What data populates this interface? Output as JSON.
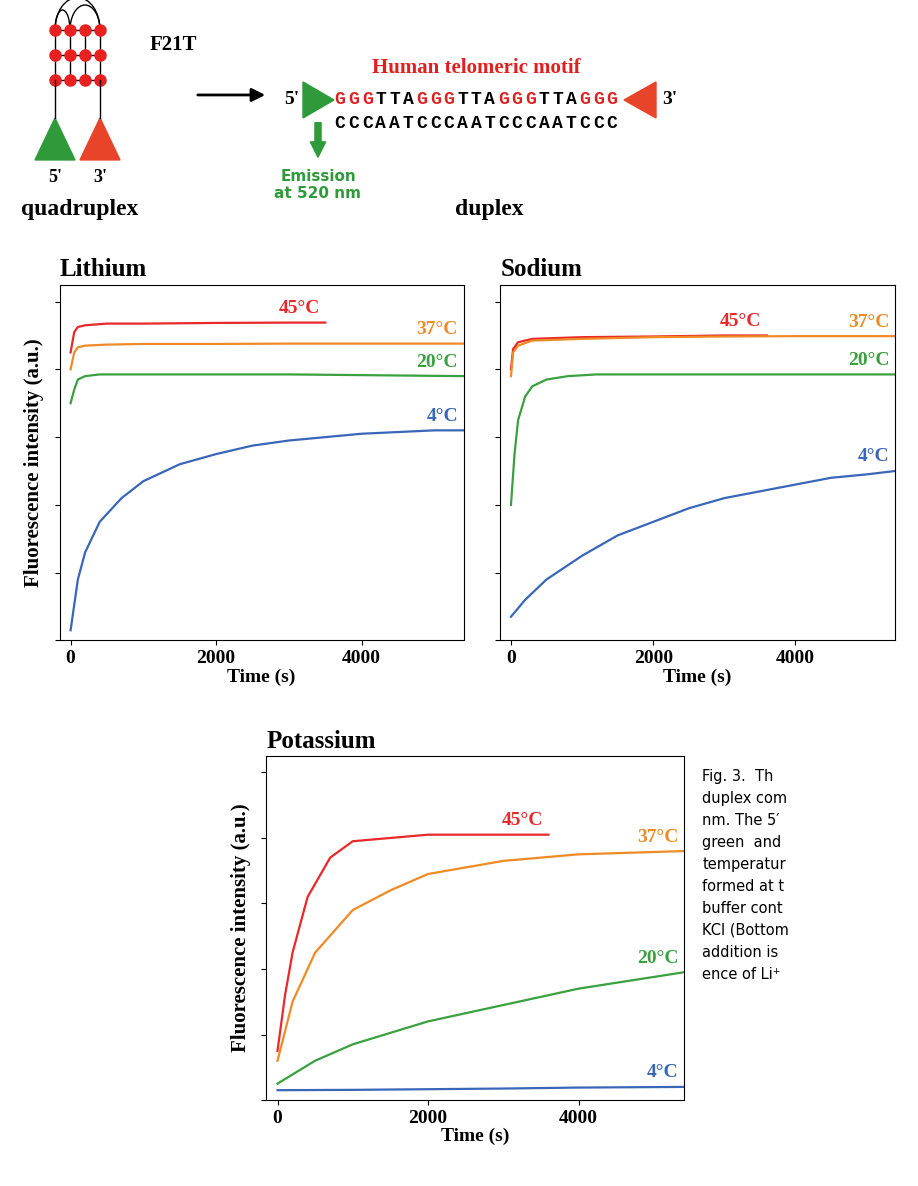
{
  "schematic": {
    "quadruplex": {
      "name": "F21T",
      "label": "quadruplex",
      "five_prime": "5'",
      "three_prime": "3'"
    },
    "duplex": {
      "motif_title": "Human telomeric motif",
      "top_strand": "GGGTTAGGGTTAGGGTTAGGG",
      "bottom_strand": "CCCAATCCCAATCCCAATCCC",
      "five_prime": "5'",
      "three_prime": "3'",
      "label": "duplex",
      "emission": "Emission\nat 520 nm"
    }
  },
  "chart_data": [
    {
      "type": "line",
      "title": "Lithium",
      "xlabel": "Time (s)",
      "ylabel": "Fluorescence intensity (a.u.)",
      "xlim": [
        -150,
        5400
      ],
      "ylim": [
        0,
        105
      ],
      "xticks": [
        0,
        2000,
        4000
      ],
      "yticks": [
        0,
        20,
        40,
        60,
        80,
        100
      ],
      "tick_labels": "x",
      "series": [
        {
          "name": "45°C",
          "color": "#e8292a",
          "x": [
            0,
            50,
            100,
            200,
            500,
            1000,
            2000,
            3000,
            3500
          ],
          "values": [
            85,
            91,
            92.5,
            93,
            93.5,
            93.5,
            93.7,
            93.8,
            93.8
          ]
        },
        {
          "name": "37°C",
          "color": "#f08a24",
          "x": [
            0,
            50,
            100,
            200,
            500,
            1000,
            2000,
            3000,
            4000,
            5400
          ],
          "values": [
            80,
            85,
            86.5,
            87,
            87.3,
            87.5,
            87.5,
            87.6,
            87.6,
            87.6
          ]
        },
        {
          "name": "20°C",
          "color": "#3aa040",
          "x": [
            0,
            50,
            100,
            200,
            400,
            1000,
            2000,
            3000,
            4000,
            5400
          ],
          "values": [
            70,
            74,
            77,
            78,
            78.5,
            78.5,
            78.5,
            78.5,
            78.3,
            78
          ]
        },
        {
          "name": "4°C",
          "color": "#3a66b8",
          "x": [
            0,
            100,
            200,
            400,
            700,
            1000,
            1500,
            2000,
            2500,
            3000,
            3500,
            4000,
            4500,
            5000,
            5400
          ],
          "values": [
            3,
            18,
            26,
            35,
            42,
            47,
            52,
            55,
            57.5,
            59,
            60,
            61,
            61.5,
            62,
            62
          ]
        }
      ]
    },
    {
      "type": "line",
      "title": "Sodium",
      "xlabel": "Time (s)",
      "xlim": [
        -150,
        5400
      ],
      "ylim": [
        0,
        105
      ],
      "xticks": [
        0,
        2000,
        4000
      ],
      "yticks": [
        0,
        20,
        40,
        60,
        80,
        100
      ],
      "tick_labels": "x",
      "series": [
        {
          "name": "45°C",
          "color": "#e8292a",
          "x": [
            0,
            30,
            100,
            300,
            1000,
            2000,
            3000,
            3600
          ],
          "values": [
            80,
            86,
            88,
            89,
            89.5,
            89.7,
            90,
            90
          ]
        },
        {
          "name": "37°C",
          "color": "#f08a24",
          "x": [
            0,
            30,
            100,
            300,
            1000,
            2000,
            3000,
            4000,
            5400
          ],
          "values": [
            78,
            85,
            87,
            88.5,
            89,
            89.5,
            89.7,
            89.8,
            89.8
          ]
        },
        {
          "name": "20°C",
          "color": "#3aa040",
          "x": [
            0,
            50,
            100,
            200,
            300,
            500,
            800,
            1200,
            2000,
            3000,
            4000,
            5400
          ],
          "values": [
            40,
            55,
            65,
            72,
            75,
            77,
            78,
            78.5,
            78.5,
            78.5,
            78.5,
            78.5
          ]
        },
        {
          "name": "4°C",
          "color": "#3a66b8",
          "x": [
            0,
            200,
            500,
            1000,
            1500,
            2000,
            2500,
            3000,
            3500,
            4000,
            4500,
            5000,
            5400
          ],
          "values": [
            7,
            12,
            18,
            25,
            31,
            35,
            39,
            42,
            44,
            46,
            48,
            49,
            50
          ]
        }
      ]
    },
    {
      "type": "line",
      "title": "Potassium",
      "xlabel": "Time (s)",
      "ylabel": "Fluorescence intensity (a.u.)",
      "xlim": [
        -150,
        5400
      ],
      "ylim": [
        0,
        105
      ],
      "xticks": [
        0,
        2000,
        4000
      ],
      "yticks": [
        0,
        20,
        40,
        60,
        80,
        100
      ],
      "tick_labels": "x",
      "series": [
        {
          "name": "45°C",
          "color": "#e8292a",
          "x": [
            0,
            100,
            200,
            400,
            700,
            1000,
            1500,
            2000,
            3000,
            3600
          ],
          "values": [
            15,
            32,
            45,
            62,
            74,
            79,
            80,
            81,
            81,
            81
          ]
        },
        {
          "name": "37°C",
          "color": "#f08a24",
          "x": [
            0,
            200,
            500,
            1000,
            1500,
            2000,
            3000,
            4000,
            5400
          ],
          "values": [
            12,
            30,
            45,
            58,
            64,
            69,
            73,
            75,
            76
          ]
        },
        {
          "name": "20°C",
          "color": "#3aa040",
          "x": [
            0,
            500,
            1000,
            2000,
            3000,
            4000,
            5400
          ],
          "values": [
            5,
            12,
            17,
            24,
            29,
            34,
            39
          ]
        },
        {
          "name": "4°C",
          "color": "#3a66b8",
          "x": [
            0,
            1000,
            2000,
            3000,
            4000,
            5400
          ],
          "values": [
            3,
            3.1,
            3.3,
            3.5,
            3.8,
            4
          ]
        }
      ]
    }
  ],
  "caption": [
    "Fig. 3.  Th",
    "duplex com",
    "nm. The 5′",
    "green  and",
    "temperatur",
    "formed at t",
    "buffer cont",
    "KCl (Bottom",
    "addition is",
    "ence of Li⁺"
  ]
}
